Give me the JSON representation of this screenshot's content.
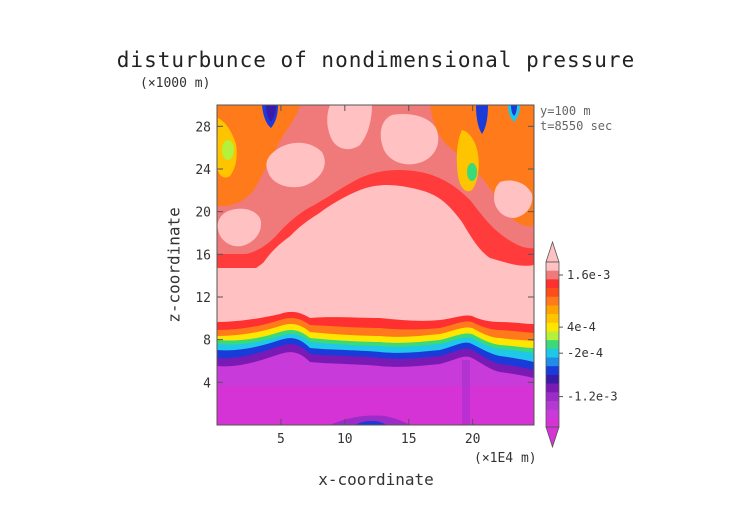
{
  "chart_data": {
    "type": "heatmap",
    "title": "disturbunce of nondimensional pressure",
    "xlabel": "x-coordinate",
    "ylabel": "z-coordinate",
    "x_unit": "(×1E4 m)",
    "y_unit": "(×1000 m)",
    "annotations": [
      "y=100 m",
      "t=8550 sec"
    ],
    "xlim": [
      0,
      24.8
    ],
    "ylim": [
      0,
      30
    ],
    "x_ticks": [
      5,
      10,
      15,
      20
    ],
    "y_ticks": [
      4,
      8,
      12,
      16,
      20,
      24,
      28
    ],
    "colorbar": {
      "labels": [
        {
          "text": "1.6e-3",
          "value": 0.0016
        },
        {
          "text": "4e-4",
          "value": 0.0004
        },
        {
          "text": "-2e-4",
          "value": -0.0002
        },
        {
          "text": "-1.2e-3",
          "value": -0.0012
        }
      ],
      "levels_top_to_bottom": [
        0.0019,
        0.0016,
        0.0014,
        0.0012,
        0.001,
        0.0008,
        0.0006,
        0.0004,
        0.0002,
        0.0,
        -0.0002,
        -0.0004,
        -0.0006,
        -0.0008,
        -0.001,
        -0.0012,
        -0.0014,
        -0.0016,
        -0.0018
      ],
      "colors_top_to_bottom": [
        "#ffc1c1",
        "#f07a7a",
        "#ff3030",
        "#ff4d1a",
        "#ff7a1a",
        "#ffa300",
        "#ffc400",
        "#ffe600",
        "#b5f03a",
        "#3ad97a",
        "#1fc8e8",
        "#1f8ce8",
        "#1a3ad9",
        "#3a1aa8",
        "#7a1ab5",
        "#9b2cc8",
        "#b23ad0",
        "#c83ad9",
        "#d633d6"
      ]
    },
    "field_description_points": [
      {
        "x": 12.4,
        "y": 0.4,
        "value": -0.0016
      },
      {
        "x": 12.4,
        "y": 4,
        "value": -0.0015
      },
      {
        "x": 12.4,
        "y": 8,
        "value": -0.0006
      },
      {
        "x": 12.4,
        "y": 10,
        "value": 0.0012
      },
      {
        "x": 12.4,
        "y": 13,
        "value": 0.0019
      },
      {
        "x": 12.4,
        "y": 22,
        "value": 0.0012
      },
      {
        "x": 4.5,
        "y": 29.5,
        "value": -0.0008
      },
      {
        "x": 22.5,
        "y": 28,
        "value": -0.0004
      },
      {
        "x": 20.2,
        "y": 23.8,
        "value": 0.0
      },
      {
        "x": 2.5,
        "y": 25.5,
        "value": 0.0002
      },
      {
        "x": 24,
        "y": 29,
        "value": -0.0006
      }
    ]
  }
}
